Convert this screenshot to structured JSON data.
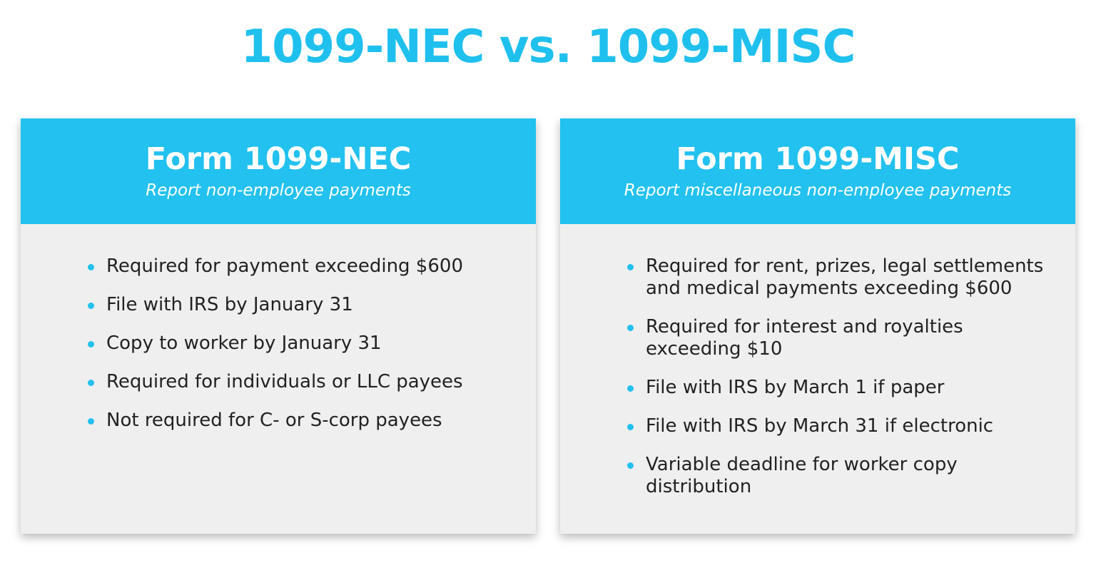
{
  "title": "1099-NEC vs. 1099-MISC",
  "cards": [
    {
      "title": "Form 1099-NEC",
      "subtitle": "Report non-employee payments",
      "items": [
        "Required for payment exceeding $600",
        "File with IRS by January 31",
        "Copy to worker by January 31",
        "Required for individuals or LLC payees",
        "Not required for C- or S-corp payees"
      ]
    },
    {
      "title": "Form 1099-MISC",
      "subtitle": "Report miscellaneous non-employee payments",
      "items": [
        "Required for rent, prizes, legal settlements and medical payments exceeding $600",
        "Required for interest and royalties exceeding $10",
        "File with IRS by March 1 if paper",
        "File with IRS by March 31 if electronic",
        "Variable deadline for worker copy distribution"
      ]
    }
  ],
  "colors": {
    "accent": "#22c1ef",
    "card_background": "#efefef",
    "text": "#222222"
  }
}
